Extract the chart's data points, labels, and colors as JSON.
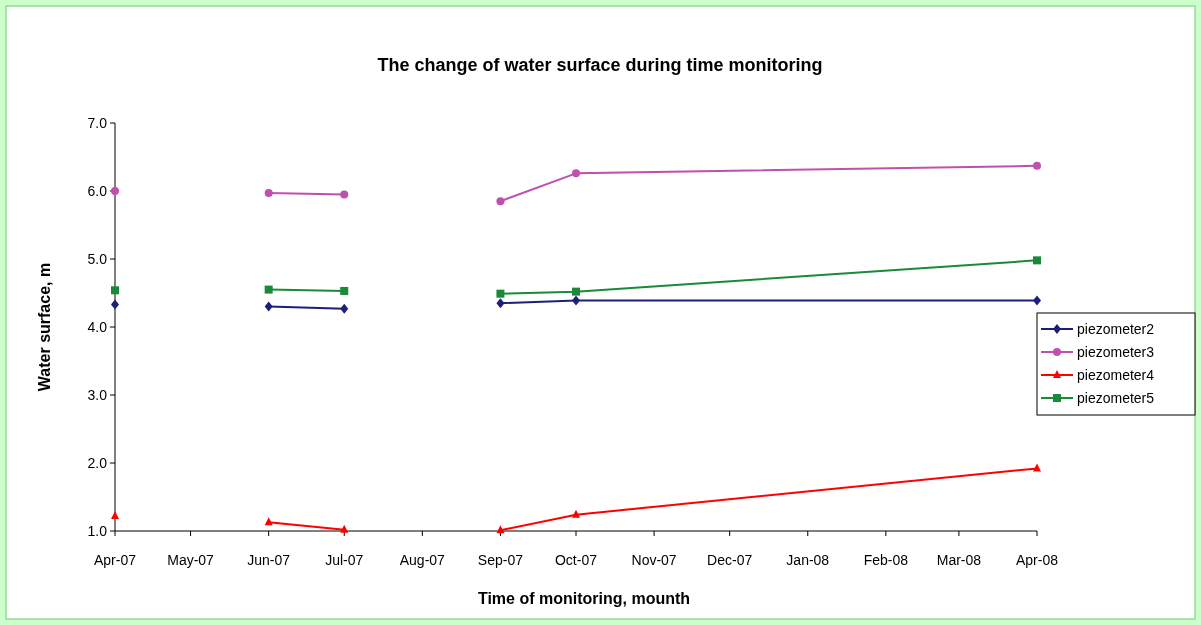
{
  "chart_data": {
    "type": "line",
    "title": "The change of water surface during time monitoring",
    "xlabel": "Time of monitoring, mounth",
    "ylabel": "Water surface, m",
    "x": [
      "2007-04",
      "2007-05",
      "2007-06",
      "2007-07",
      "2007-08",
      "2007-09",
      "2007-10",
      "2008-04"
    ],
    "series": [
      {
        "name": "piezometer2",
        "color": "#1f1f7a",
        "marker": "diamond",
        "values": [
          4.33,
          null,
          4.3,
          4.27,
          null,
          4.35,
          4.39,
          4.39
        ]
      },
      {
        "name": "piezometer3",
        "color": "#c050b0",
        "marker": "circle",
        "values": [
          6.0,
          null,
          5.97,
          5.95,
          null,
          5.85,
          6.26,
          6.37
        ]
      },
      {
        "name": "piezometer4",
        "color": "#ff0000",
        "marker": "triangle",
        "values": [
          1.22,
          null,
          1.13,
          1.02,
          null,
          1.01,
          1.24,
          1.92
        ]
      },
      {
        "name": "piezometer5",
        "color": "#1a8a3a",
        "marker": "square",
        "values": [
          4.54,
          null,
          4.55,
          4.53,
          null,
          4.49,
          4.52,
          4.98
        ]
      }
    ],
    "xlim": [
      "2007-04",
      "2008-04"
    ],
    "xticks": [
      {
        "value": "2007-04",
        "label": "Apr-07"
      },
      {
        "value": "2007-05",
        "label": "May-07"
      },
      {
        "value": "2007-06",
        "label": "Jun-07"
      },
      {
        "value": "2007-07",
        "label": "Jul-07"
      },
      {
        "value": "2007-08",
        "label": "Aug-07"
      },
      {
        "value": "2007-09",
        "label": "Sep-07"
      },
      {
        "value": "2007-10",
        "label": "Oct-07"
      },
      {
        "value": "2007-11",
        "label": "Nov-07"
      },
      {
        "value": "2007-12",
        "label": "Dec-07"
      },
      {
        "value": "2008-01",
        "label": "Jan-08"
      },
      {
        "value": "2008-02",
        "label": "Feb-08"
      },
      {
        "value": "2008-03",
        "label": "Mar-08"
      },
      {
        "value": "2008-04",
        "label": "Apr-08"
      }
    ],
    "ylim": [
      1,
      7
    ],
    "yticks": [
      {
        "value": 1,
        "label": "1.0"
      },
      {
        "value": 2,
        "label": "2.0"
      },
      {
        "value": 3,
        "label": "3.0"
      },
      {
        "value": 4,
        "label": "4.0"
      },
      {
        "value": 5,
        "label": "5.0"
      },
      {
        "value": 6,
        "label": "6.0"
      },
      {
        "value": 7,
        "label": "7.0"
      }
    ],
    "grid": false,
    "legend": "right",
    "line_style": "solid"
  }
}
